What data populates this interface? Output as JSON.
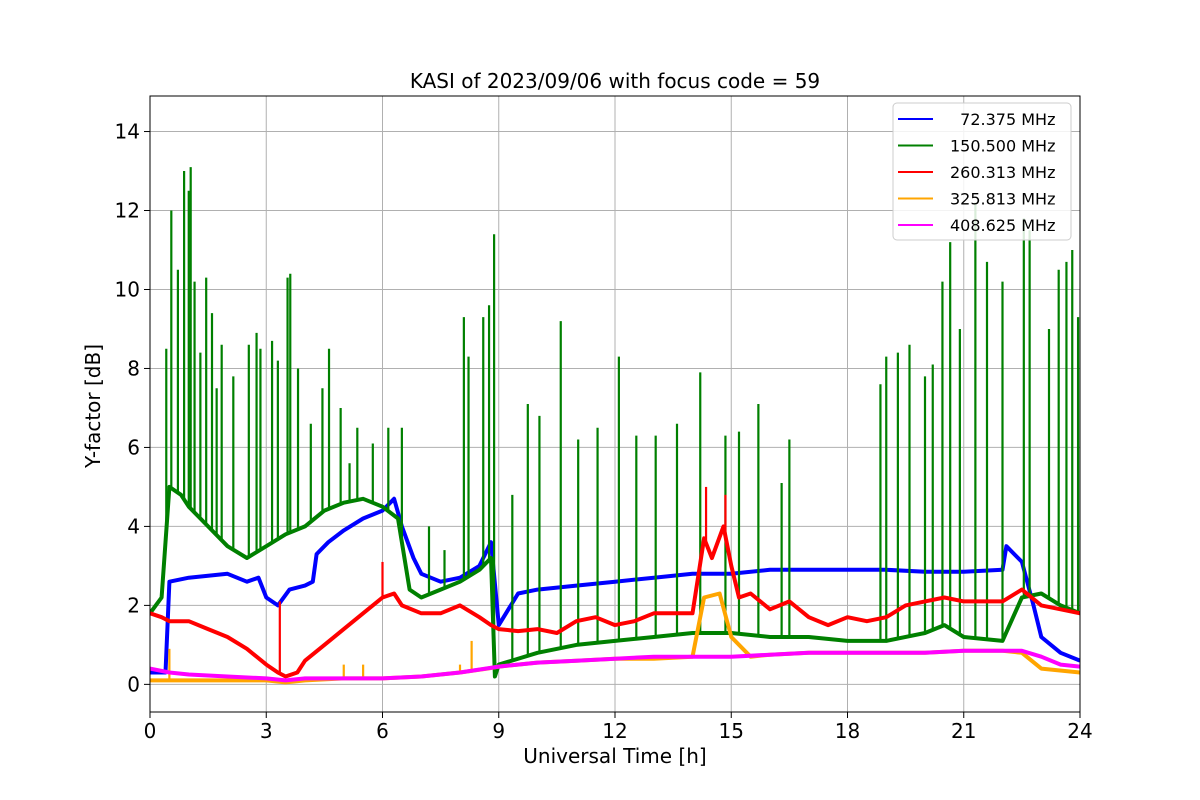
{
  "chart_data": {
    "type": "line",
    "title": "KASI of 2023/09/06 with focus code = 59",
    "xlabel": "Universal Time [h]",
    "ylabel": "Y-factor [dB]",
    "xlim": [
      0,
      24
    ],
    "ylim": [
      -0.7,
      14.9
    ],
    "xticks": [
      0,
      3,
      6,
      9,
      12,
      15,
      18,
      21,
      24
    ],
    "yticks": [
      0,
      2,
      4,
      6,
      8,
      10,
      12,
      14
    ],
    "grid": true,
    "legend_position": "top-right",
    "series": [
      {
        "name": "  72.375 MHz",
        "color": "#0000ff",
        "x": [
          0,
          0.4,
          0.5,
          1,
          2,
          2.5,
          2.8,
          3,
          3.3,
          3.6,
          4,
          4.2,
          4.3,
          4.6,
          5,
          5.5,
          6,
          6.3,
          6.5,
          6.8,
          7,
          7.5,
          8,
          8.5,
          8.8,
          9,
          9.5,
          10,
          11,
          12,
          13,
          14,
          15,
          16,
          17,
          18,
          19,
          20,
          21,
          22,
          22.1,
          22.5,
          22.8,
          23,
          23.5,
          24
        ],
        "y": [
          0.3,
          0.3,
          2.6,
          2.7,
          2.8,
          2.6,
          2.7,
          2.2,
          2.0,
          2.4,
          2.5,
          2.6,
          3.3,
          3.6,
          3.9,
          4.2,
          4.4,
          4.7,
          4.0,
          3.2,
          2.8,
          2.6,
          2.7,
          3.0,
          3.6,
          1.5,
          2.3,
          2.4,
          2.5,
          2.6,
          2.7,
          2.8,
          2.8,
          2.9,
          2.9,
          2.9,
          2.9,
          2.85,
          2.85,
          2.9,
          3.5,
          3.1,
          2.0,
          1.2,
          0.8,
          0.6
        ]
      },
      {
        "name": "150.500 MHz",
        "color": "#008000",
        "x": [
          0,
          0.3,
          0.5,
          0.8,
          1,
          1.5,
          2,
          2.5,
          3,
          3.5,
          4,
          4.5,
          5,
          5.5,
          6,
          6.4,
          6.7,
          7,
          7.5,
          8,
          8.5,
          8.8,
          8.9,
          9,
          10,
          11,
          12,
          13,
          14,
          15,
          16,
          17,
          18,
          19,
          20,
          20.5,
          21,
          22,
          22.5,
          23,
          23.5,
          24
        ],
        "y": [
          1.8,
          2.2,
          5.0,
          4.8,
          4.5,
          4.0,
          3.5,
          3.2,
          3.5,
          3.8,
          4.0,
          4.4,
          4.6,
          4.7,
          4.5,
          4.2,
          2.4,
          2.2,
          2.4,
          2.6,
          2.9,
          3.2,
          0.2,
          0.5,
          0.8,
          1.0,
          1.1,
          1.2,
          1.3,
          1.3,
          1.2,
          1.2,
          1.1,
          1.1,
          1.3,
          1.5,
          1.2,
          1.1,
          2.2,
          2.3,
          2.0,
          1.8
        ],
        "spikes_x": [
          0.42,
          0.55,
          0.72,
          0.88,
          1.0,
          1.05,
          1.15,
          1.3,
          1.45,
          1.6,
          1.72,
          1.85,
          2.15,
          2.55,
          2.75,
          2.85,
          3.15,
          3.3,
          3.55,
          3.62,
          3.82,
          4.15,
          4.45,
          4.62,
          4.92,
          5.15,
          5.35,
          5.75,
          6.15,
          6.5,
          7.2,
          7.6,
          8.1,
          8.22,
          8.6,
          8.75,
          8.88,
          9.35,
          9.75,
          10.05,
          10.6,
          11.05,
          11.55,
          12.1,
          12.55,
          13.05,
          13.6,
          14.2,
          14.85,
          15.2,
          15.7,
          16.3,
          16.5,
          18.85,
          19.0,
          19.3,
          19.6,
          20.0,
          20.2,
          20.45,
          20.65,
          20.9,
          21.3,
          21.6,
          22.0,
          22.55,
          22.7,
          23.2,
          23.45,
          23.65,
          23.8,
          23.95
        ],
        "spikes_y": [
          8.5,
          12.0,
          10.5,
          13.0,
          12.5,
          13.1,
          10.2,
          8.4,
          10.3,
          9.4,
          7.5,
          8.6,
          7.8,
          8.6,
          8.9,
          8.5,
          8.7,
          8.2,
          10.3,
          10.4,
          8.0,
          6.6,
          7.5,
          8.5,
          7.0,
          5.6,
          6.5,
          6.1,
          6.5,
          6.5,
          4.0,
          3.4,
          9.3,
          8.3,
          9.3,
          9.6,
          11.4,
          4.8,
          7.1,
          6.8,
          9.2,
          6.2,
          6.5,
          8.3,
          6.3,
          6.3,
          6.6,
          7.9,
          6.3,
          6.4,
          7.1,
          5.1,
          6.2,
          7.6,
          8.3,
          8.4,
          8.6,
          7.8,
          8.1,
          10.2,
          11.2,
          9.0,
          12.2,
          10.7,
          10.2,
          11.8,
          11.5,
          9.0,
          10.5,
          10.7,
          11.0,
          9.3
        ]
      },
      {
        "name": "260.313 MHz",
        "color": "#ff0000",
        "x": [
          0,
          0.3,
          0.5,
          1,
          1.5,
          2,
          2.5,
          3,
          3.3,
          3.5,
          3.8,
          4,
          4.5,
          5,
          5.5,
          6,
          6.3,
          6.5,
          7,
          7.5,
          8,
          8.5,
          8.8,
          9,
          9.5,
          10,
          10.5,
          11,
          11.5,
          12,
          12.5,
          13,
          13.5,
          14,
          14.3,
          14.5,
          14.8,
          15,
          15.2,
          15.5,
          16,
          16.5,
          17,
          17.5,
          18,
          18.5,
          19,
          19.5,
          20,
          20.5,
          21,
          21.5,
          22,
          22.5,
          23,
          23.5,
          24
        ],
        "y": [
          1.8,
          1.7,
          1.6,
          1.6,
          1.4,
          1.2,
          0.9,
          0.5,
          0.3,
          0.2,
          0.3,
          0.6,
          1.0,
          1.4,
          1.8,
          2.2,
          2.3,
          2.0,
          1.8,
          1.8,
          2.0,
          1.7,
          1.5,
          1.4,
          1.35,
          1.4,
          1.3,
          1.6,
          1.7,
          1.5,
          1.6,
          1.8,
          1.8,
          1.8,
          3.7,
          3.2,
          4.0,
          3.0,
          2.2,
          2.3,
          1.9,
          2.1,
          1.7,
          1.5,
          1.7,
          1.6,
          1.7,
          2.0,
          2.1,
          2.2,
          2.1,
          2.1,
          2.1,
          2.4,
          2.0,
          1.9,
          1.8
        ],
        "spikes_x": [
          3.35,
          6.0,
          14.35,
          14.85
        ],
        "spikes_y": [
          2.1,
          3.1,
          5.0,
          4.8
        ]
      },
      {
        "name": "325.813 MHz",
        "color": "#ffa500",
        "x": [
          0,
          0.5,
          1,
          2,
          3,
          3.5,
          4,
          5,
          6,
          7,
          8,
          8.7,
          9,
          10,
          11,
          12,
          13,
          14,
          14.3,
          14.7,
          15,
          15.5,
          16,
          17,
          18,
          19,
          20,
          21,
          22,
          22.5,
          23,
          24
        ],
        "y": [
          0.1,
          0.1,
          0.1,
          0.1,
          0.1,
          0.05,
          0.1,
          0.15,
          0.15,
          0.2,
          0.3,
          0.4,
          0.45,
          0.55,
          0.6,
          0.65,
          0.65,
          0.7,
          2.2,
          2.3,
          1.2,
          0.7,
          0.75,
          0.8,
          0.8,
          0.8,
          0.8,
          0.85,
          0.85,
          0.8,
          0.4,
          0.3
        ],
        "spikes_x": [
          0.5,
          5.0,
          5.5,
          8.0,
          8.3
        ],
        "spikes_y": [
          0.9,
          0.5,
          0.5,
          0.5,
          1.1
        ]
      },
      {
        "name": "408.625 MHz",
        "color": "#ff00ff",
        "x": [
          0,
          0.5,
          1,
          2,
          3,
          3.5,
          4,
          5,
          6,
          7,
          8,
          9,
          10,
          11,
          12,
          13,
          14,
          15,
          16,
          17,
          18,
          19,
          20,
          21,
          22,
          22.5,
          23,
          23.5,
          24
        ],
        "y": [
          0.4,
          0.3,
          0.25,
          0.2,
          0.15,
          0.1,
          0.15,
          0.15,
          0.15,
          0.2,
          0.3,
          0.45,
          0.55,
          0.6,
          0.65,
          0.7,
          0.7,
          0.7,
          0.75,
          0.8,
          0.8,
          0.8,
          0.8,
          0.85,
          0.85,
          0.85,
          0.7,
          0.5,
          0.45
        ]
      }
    ]
  }
}
